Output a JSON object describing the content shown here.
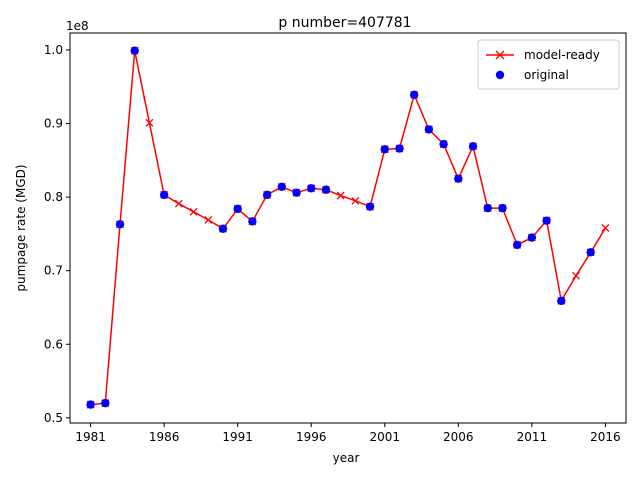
{
  "chart_data": {
    "type": "line",
    "title": "p number=407781",
    "xlabel": "year",
    "ylabel": "pumpage rate (MGD)",
    "y_offset_label": "1e8",
    "y_scale": 100000000,
    "xlim": [
      1979.6,
      2017.4
    ],
    "ylim": [
      0.493,
      1.023
    ],
    "x_ticks": [
      1981,
      1986,
      1991,
      1996,
      2001,
      2006,
      2011,
      2016
    ],
    "y_ticks": [
      0.5,
      0.6,
      0.7,
      0.8,
      0.9,
      1.0
    ],
    "y_tick_labels": [
      "0.5",
      "0.6",
      "0.7",
      "0.8",
      "0.9",
      "1.0"
    ],
    "legend_position": "top-right",
    "series": [
      {
        "name": "model-ready",
        "color": "#ff0000",
        "marker": "x",
        "x": [
          1981,
          1982,
          1983,
          1984,
          1985,
          1986,
          1987,
          1988,
          1989,
          1990,
          1991,
          1992,
          1993,
          1994,
          1995,
          1996,
          1997,
          1998,
          1999,
          2000,
          2001,
          2002,
          2003,
          2004,
          2005,
          2006,
          2007,
          2008,
          2009,
          2010,
          2011,
          2012,
          2013,
          2014,
          2015,
          2016
        ],
        "y": [
          0.518,
          0.52,
          0.763,
          0.999,
          0.901,
          0.803,
          0.791,
          0.78,
          0.769,
          0.757,
          0.784,
          0.767,
          0.803,
          0.814,
          0.806,
          0.812,
          0.81,
          0.802,
          0.795,
          0.787,
          0.865,
          0.866,
          0.939,
          0.892,
          0.872,
          0.825,
          0.869,
          0.785,
          0.785,
          0.735,
          0.745,
          0.768,
          0.659,
          0.693,
          0.725,
          0.758
        ]
      },
      {
        "name": "original",
        "color": "#0000ff",
        "marker": "o",
        "x": [
          1981,
          1982,
          1983,
          1984,
          1986,
          1990,
          1991,
          1992,
          1993,
          1994,
          1995,
          1996,
          1997,
          2000,
          2001,
          2002,
          2003,
          2004,
          2005,
          2006,
          2007,
          2008,
          2009,
          2010,
          2011,
          2012,
          2013,
          2015
        ],
        "y": [
          0.518,
          0.52,
          0.763,
          0.999,
          0.803,
          0.757,
          0.784,
          0.767,
          0.803,
          0.814,
          0.806,
          0.812,
          0.81,
          0.787,
          0.865,
          0.866,
          0.939,
          0.892,
          0.872,
          0.825,
          0.869,
          0.785,
          0.785,
          0.735,
          0.745,
          0.768,
          0.659,
          0.725
        ]
      }
    ]
  }
}
